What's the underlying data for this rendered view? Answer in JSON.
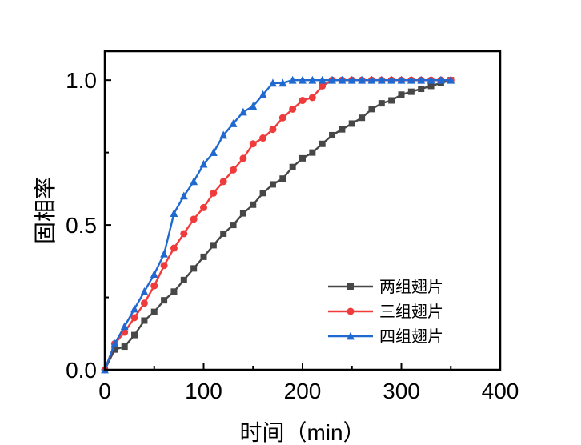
{
  "chart_data": {
    "type": "line",
    "title": "",
    "xlabel": "时间（min）",
    "ylabel": "固相率",
    "xlim": [
      0,
      400
    ],
    "ylim": [
      0,
      1.1
    ],
    "xticks": [
      "0",
      "100",
      "200",
      "300",
      "400"
    ],
    "yticks": [
      "0.0",
      "0.5",
      "1.0"
    ],
    "grid": false,
    "legend_position": "bottom-right",
    "series": [
      {
        "name": "两组翅片",
        "color": "#474747",
        "marker": "square",
        "x": [
          0,
          10,
          20,
          30,
          40,
          50,
          60,
          70,
          80,
          90,
          100,
          110,
          120,
          130,
          140,
          150,
          160,
          170,
          180,
          190,
          200,
          210,
          220,
          230,
          240,
          250,
          260,
          270,
          280,
          290,
          300,
          310,
          320,
          330,
          340,
          350
        ],
        "y": [
          0,
          0.07,
          0.08,
          0.12,
          0.17,
          0.2,
          0.24,
          0.27,
          0.31,
          0.35,
          0.39,
          0.43,
          0.47,
          0.5,
          0.54,
          0.57,
          0.61,
          0.64,
          0.66,
          0.7,
          0.73,
          0.75,
          0.78,
          0.81,
          0.83,
          0.85,
          0.87,
          0.9,
          0.92,
          0.93,
          0.95,
          0.96,
          0.97,
          0.98,
          0.99,
          1.0
        ]
      },
      {
        "name": "三组翅片",
        "color": "#ef3b3b",
        "marker": "circle",
        "x": [
          0,
          10,
          20,
          30,
          40,
          50,
          60,
          70,
          80,
          90,
          100,
          110,
          120,
          130,
          140,
          150,
          160,
          170,
          180,
          190,
          200,
          210,
          220,
          230,
          240,
          250,
          260,
          270,
          280,
          290,
          300,
          310,
          320,
          330,
          340,
          350
        ],
        "y": [
          0,
          0.09,
          0.13,
          0.18,
          0.23,
          0.29,
          0.36,
          0.42,
          0.47,
          0.52,
          0.56,
          0.61,
          0.65,
          0.69,
          0.73,
          0.78,
          0.8,
          0.83,
          0.87,
          0.9,
          0.93,
          0.94,
          0.98,
          1.0,
          1.0,
          1.0,
          1.0,
          1.0,
          1.0,
          1.0,
          1.0,
          1.0,
          1.0,
          1.0,
          1.0,
          1.0
        ]
      },
      {
        "name": "四组翅片",
        "color": "#1f69d0",
        "marker": "triangle",
        "x": [
          0,
          10,
          20,
          30,
          40,
          50,
          60,
          70,
          80,
          90,
          100,
          110,
          120,
          130,
          140,
          150,
          160,
          170,
          180,
          190,
          200,
          210,
          220,
          230,
          240,
          250,
          260,
          270,
          280,
          290,
          300,
          310,
          320,
          330,
          340,
          350
        ],
        "y": [
          0,
          0.09,
          0.15,
          0.21,
          0.27,
          0.33,
          0.4,
          0.54,
          0.6,
          0.65,
          0.71,
          0.75,
          0.81,
          0.85,
          0.89,
          0.91,
          0.95,
          0.99,
          0.99,
          1.0,
          1.0,
          1.0,
          1.0,
          1.0,
          1.0,
          1.0,
          1.0,
          1.0,
          1.0,
          1.0,
          1.0,
          1.0,
          1.0,
          1.0,
          1.0,
          1.0
        ]
      }
    ]
  }
}
